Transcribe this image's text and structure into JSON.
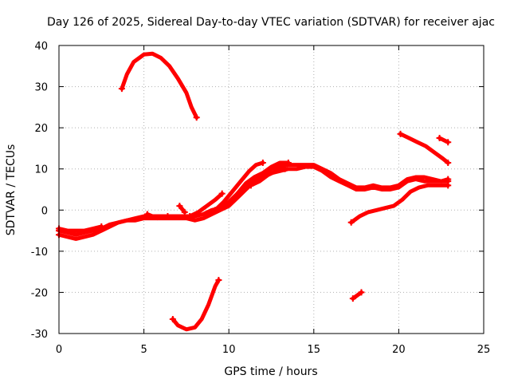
{
  "chart_data": {
    "type": "scatter",
    "title": "Day 126 of 2025, Sidereal Day-to-day VTEC variation (SDTVAR) for receiver ajac",
    "xlabel": "GPS time / hours",
    "ylabel": "SDTVAR / TECUs",
    "xlim": [
      0,
      25
    ],
    "ylim": [
      -30,
      40
    ],
    "xticks": [
      0,
      5,
      10,
      15,
      20,
      25
    ],
    "yticks": [
      -30,
      -20,
      -10,
      0,
      10,
      20,
      30,
      40
    ],
    "x_tick_labels": [
      "0",
      "5",
      "10",
      "15",
      "20",
      "25"
    ],
    "y_tick_labels": [
      "-30",
      "-20",
      "-10",
      "0",
      "10",
      "20",
      "30",
      "40"
    ],
    "grid": true,
    "color": "#ff0000",
    "series": [
      {
        "name": "arc-high",
        "points": [
          [
            3.7,
            29.5
          ],
          [
            4.0,
            33
          ],
          [
            4.4,
            36
          ],
          [
            5.0,
            37.8
          ],
          [
            5.5,
            38
          ],
          [
            6.0,
            37
          ],
          [
            6.5,
            35
          ],
          [
            7.0,
            32
          ],
          [
            7.5,
            28.5
          ],
          [
            7.8,
            25
          ],
          [
            8.1,
            22.5
          ]
        ]
      },
      {
        "name": "arc-low",
        "points": [
          [
            6.7,
            -26.5
          ],
          [
            7.0,
            -28
          ],
          [
            7.5,
            -29
          ],
          [
            8.0,
            -28.5
          ],
          [
            8.4,
            -26.5
          ],
          [
            8.8,
            -23
          ],
          [
            9.2,
            -18.5
          ],
          [
            9.4,
            -17
          ]
        ]
      },
      {
        "name": "main-band-a",
        "points": [
          [
            0.0,
            -5
          ],
          [
            0.5,
            -5.5
          ],
          [
            1.0,
            -6
          ],
          [
            1.5,
            -5.5
          ],
          [
            2.0,
            -5
          ],
          [
            2.5,
            -4.5
          ],
          [
            3.0,
            -3.5
          ],
          [
            3.5,
            -3
          ],
          [
            4.0,
            -2.5
          ],
          [
            4.5,
            -2
          ],
          [
            5.0,
            -1.5
          ],
          [
            5.5,
            -1.5
          ],
          [
            6.0,
            -1.5
          ],
          [
            6.5,
            -1.5
          ],
          [
            7.0,
            -1.5
          ],
          [
            7.5,
            -1.5
          ],
          [
            8.0,
            -1.5
          ],
          [
            8.5,
            -1
          ],
          [
            9.0,
            0
          ],
          [
            9.5,
            0.5
          ],
          [
            10.0,
            2
          ],
          [
            10.5,
            4
          ],
          [
            11.0,
            6.5
          ],
          [
            11.5,
            8
          ],
          [
            12.0,
            9
          ],
          [
            12.5,
            10
          ],
          [
            13.0,
            10.5
          ],
          [
            13.5,
            11
          ],
          [
            14.0,
            11
          ],
          [
            14.5,
            11
          ],
          [
            15.0,
            11
          ],
          [
            15.5,
            10
          ],
          [
            16.0,
            9
          ],
          [
            16.5,
            7.5
          ],
          [
            17.0,
            6.5
          ],
          [
            17.5,
            5.5
          ],
          [
            18.0,
            5.5
          ],
          [
            18.5,
            6
          ],
          [
            19.0,
            5.5
          ],
          [
            19.5,
            5.5
          ],
          [
            20.0,
            6
          ],
          [
            20.5,
            7.5
          ],
          [
            21.0,
            8
          ],
          [
            21.5,
            8
          ],
          [
            22.0,
            7.5
          ],
          [
            22.5,
            7
          ],
          [
            22.9,
            7
          ]
        ]
      },
      {
        "name": "main-band-b",
        "points": [
          [
            0.0,
            -6
          ],
          [
            0.5,
            -6.5
          ],
          [
            1.0,
            -7
          ],
          [
            1.5,
            -6.5
          ],
          [
            2.0,
            -6
          ],
          [
            2.5,
            -5
          ],
          [
            3.0,
            -4
          ],
          [
            3.5,
            -3
          ],
          [
            4.0,
            -2.5
          ],
          [
            4.5,
            -2.5
          ],
          [
            5.0,
            -2
          ],
          [
            5.5,
            -2
          ],
          [
            6.0,
            -2
          ],
          [
            6.5,
            -2
          ],
          [
            7.0,
            -2
          ],
          [
            7.5,
            -2
          ],
          [
            8.0,
            -2.5
          ],
          [
            8.5,
            -2
          ],
          [
            9.0,
            -1
          ],
          [
            9.5,
            0
          ],
          [
            10.0,
            1
          ],
          [
            10.5,
            3
          ],
          [
            11.0,
            5
          ],
          [
            11.5,
            7
          ],
          [
            12.0,
            8
          ],
          [
            12.5,
            9
          ],
          [
            13.0,
            9.5
          ],
          [
            13.5,
            10
          ],
          [
            14.0,
            10
          ],
          [
            14.5,
            10.5
          ],
          [
            15.0,
            10.5
          ],
          [
            15.5,
            9.5
          ],
          [
            16.0,
            8
          ],
          [
            16.5,
            7
          ],
          [
            17.0,
            6
          ],
          [
            17.5,
            5
          ],
          [
            18.0,
            5
          ],
          [
            18.5,
            5.5
          ],
          [
            19.0,
            5
          ],
          [
            19.5,
            5
          ],
          [
            20.0,
            5.5
          ],
          [
            20.5,
            7
          ],
          [
            21.0,
            7.5
          ],
          [
            21.5,
            7
          ],
          [
            22.0,
            7
          ],
          [
            22.5,
            7
          ],
          [
            22.9,
            7.5
          ]
        ]
      },
      {
        "name": "main-band-c",
        "points": [
          [
            0.0,
            -4.5
          ],
          [
            0.5,
            -5
          ],
          [
            1.0,
            -5
          ],
          [
            1.5,
            -5
          ],
          [
            2.0,
            -4.5
          ],
          [
            2.5,
            -4
          ]
        ]
      },
      {
        "name": "rise-1",
        "points": [
          [
            7.7,
            -1.5
          ],
          [
            8.2,
            -0.5
          ],
          [
            8.7,
            1
          ],
          [
            9.2,
            2.5
          ],
          [
            9.6,
            4
          ]
        ]
      },
      {
        "name": "rise-2",
        "points": [
          [
            9.2,
            0
          ],
          [
            9.7,
            2
          ],
          [
            10.2,
            4.5
          ],
          [
            10.7,
            7
          ],
          [
            11.2,
            9.5
          ],
          [
            11.6,
            11
          ],
          [
            12.0,
            11.5
          ]
        ]
      },
      {
        "name": "rise-3",
        "points": [
          [
            10.0,
            1.5
          ],
          [
            10.5,
            4
          ],
          [
            11.0,
            6
          ],
          [
            11.5,
            8
          ],
          [
            12.0,
            9
          ],
          [
            12.5,
            10.5
          ],
          [
            13.0,
            11.5
          ],
          [
            13.5,
            11.5
          ]
        ]
      },
      {
        "name": "step-5.5",
        "points": [
          [
            5.2,
            -1
          ],
          [
            5.8,
            -2
          ],
          [
            6.4,
            -1.5
          ]
        ]
      },
      {
        "name": "tick-7.2",
        "points": [
          [
            7.1,
            1
          ],
          [
            7.4,
            -0.5
          ]
        ]
      },
      {
        "name": "branch-11.5",
        "points": [
          [
            11.3,
            6
          ],
          [
            11.8,
            7
          ],
          [
            12.3,
            8.5
          ],
          [
            12.8,
            9.5
          ],
          [
            13.3,
            10
          ]
        ]
      },
      {
        "name": "lower-right",
        "points": [
          [
            17.2,
            -3
          ],
          [
            17.7,
            -1.5
          ],
          [
            18.2,
            -0.5
          ],
          [
            18.7,
            0
          ],
          [
            19.2,
            0.5
          ],
          [
            19.7,
            1
          ],
          [
            20.2,
            2.5
          ],
          [
            20.7,
            4.5
          ],
          [
            21.2,
            5.5
          ],
          [
            21.7,
            6
          ],
          [
            22.2,
            6
          ],
          [
            22.6,
            6
          ],
          [
            22.9,
            6
          ]
        ]
      },
      {
        "name": "upper-right",
        "points": [
          [
            20.1,
            18.5
          ],
          [
            20.6,
            17.5
          ],
          [
            21.1,
            16.5
          ],
          [
            21.6,
            15.5
          ],
          [
            22.1,
            14
          ],
          [
            22.6,
            12.5
          ],
          [
            22.9,
            11.5
          ]
        ]
      },
      {
        "name": "stub-22.6",
        "points": [
          [
            22.4,
            17.5
          ],
          [
            22.9,
            16.5
          ]
        ]
      },
      {
        "name": "stub-17.5",
        "points": [
          [
            17.3,
            -21.5
          ],
          [
            17.8,
            -20
          ]
        ]
      }
    ]
  }
}
